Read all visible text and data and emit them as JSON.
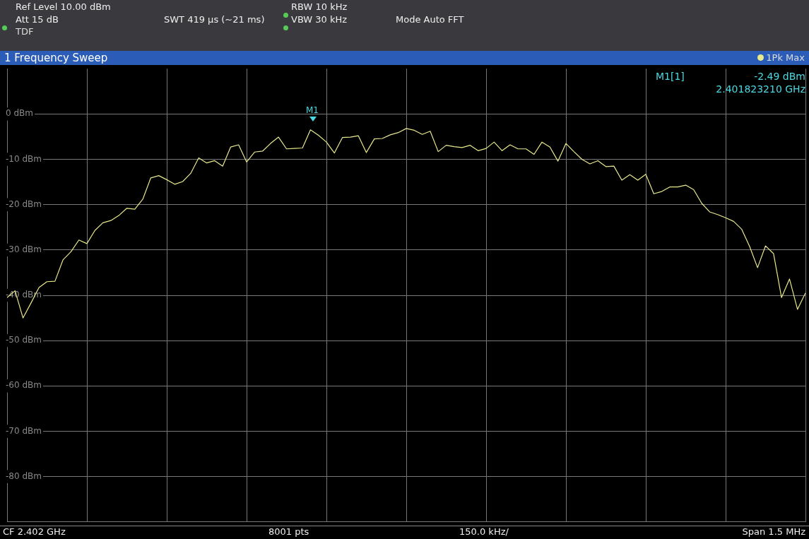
{
  "chart_data": {
    "type": "line",
    "title": "1 Frequency Sweep",
    "legend": "top right",
    "grid": true,
    "marker": "none",
    "line_style": "solid",
    "tick_labels": "y",
    "categories": [
      null,
      null,
      null,
      null,
      null,
      null,
      null,
      null,
      null,
      null,
      null,
      null,
      null,
      null,
      null,
      null,
      null,
      null,
      null,
      null,
      null,
      null,
      null,
      null,
      null,
      null,
      null,
      null,
      null,
      null,
      null,
      null,
      null,
      null,
      null,
      null,
      null,
      null,
      null,
      null,
      null,
      null,
      null,
      null,
      null,
      null,
      null,
      null,
      null,
      null,
      null,
      null,
      null,
      null,
      null,
      null,
      null,
      null,
      null,
      null,
      null,
      null,
      null,
      null,
      null,
      null,
      null,
      null,
      null,
      null,
      null,
      null,
      null,
      null,
      null,
      null,
      null,
      null,
      null,
      null,
      null,
      null,
      null,
      null,
      null,
      null,
      null,
      null,
      null,
      null,
      null,
      null,
      null,
      null,
      null,
      null,
      null,
      null,
      null,
      null,
      null
    ],
    "ylim": [
      -90,
      10
    ],
    "yticks": [
      {
        "value": 0,
        "label": "0 dBm"
      },
      {
        "value": -10,
        "label": "-10 dBm"
      },
      {
        "value": -20,
        "label": "-20 dBm"
      },
      {
        "value": -30,
        "label": "-30 dBm"
      },
      {
        "value": -40,
        "label": "-40 dBm"
      },
      {
        "value": -50,
        "label": "-50 dBm"
      },
      {
        "value": -60,
        "label": "-60 dBm"
      },
      {
        "value": -70,
        "label": "-70 dBm"
      },
      {
        "value": -80,
        "label": "-80 dBm"
      }
    ],
    "series": [
      {
        "name": "1Pk Max",
        "color": "#e8e88c",
        "values": [
          -40.5,
          -39.0,
          -45.0,
          -41.7,
          -38.3,
          -37.0,
          -36.9,
          -32.2,
          -30.4,
          -27.8,
          -28.6,
          -25.7,
          -24.0,
          -23.5,
          -22.4,
          -20.8,
          -21.0,
          -18.8,
          -14.1,
          -13.6,
          -14.5,
          -15.5,
          -14.9,
          -13.1,
          -9.7,
          -10.8,
          -10.3,
          -11.5,
          -7.3,
          -6.8,
          -10.6,
          -8.4,
          -8.2,
          -6.5,
          -5.1,
          -7.7,
          -7.6,
          -7.5,
          -3.5,
          -4.7,
          -6.2,
          -8.6,
          -5.2,
          -5.1,
          -4.8,
          -8.5,
          -5.5,
          -5.4,
          -4.6,
          -4.1,
          -3.2,
          -3.6,
          -4.5,
          -3.8,
          -8.3,
          -6.9,
          -7.2,
          -7.4,
          -6.9,
          -8.1,
          -7.6,
          -6.2,
          -8.1,
          -6.8,
          -7.7,
          -7.7,
          -8.9,
          -6.2,
          -7.3,
          -10.4,
          -6.5,
          -8.3,
          -10.0,
          -11.0,
          -10.3,
          -11.6,
          -11.5,
          -14.6,
          -13.4,
          -14.6,
          -13.3,
          -17.6,
          -17.1,
          -16.1,
          -16.1,
          -15.7,
          -16.7,
          -19.7,
          -21.6,
          -22.2,
          -22.9,
          -23.7,
          -25.4,
          -29.2,
          -33.9,
          -29.1,
          -30.8,
          -40.5,
          -36.4,
          -43.1,
          -39.5
        ]
      }
    ],
    "annotations": [
      "Ref Level 10.00 dBm",
      "Att 15 dB",
      "TDF",
      "SWT 419 µs (~21 ms)",
      "RBW 10 kHz",
      "VBW 30 kHz",
      "Mode Auto FFT",
      "M1[1]",
      "-2.49 dBm",
      "2.401823210 GHz",
      "CF 2.402 GHz",
      "8001 pts",
      "150.0 kHz/",
      "Span 1.5 MHz",
      "M1"
    ]
  }
}
